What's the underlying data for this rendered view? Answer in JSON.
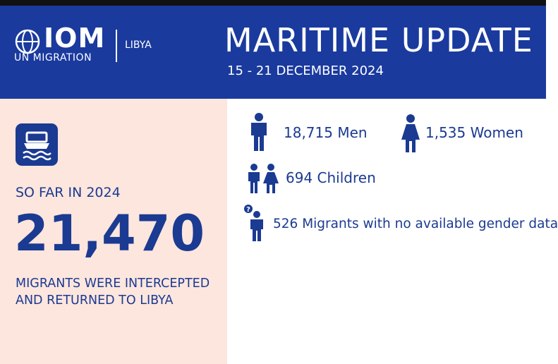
{
  "header": {
    "logo": {
      "name": "IOM",
      "tagline": "UN MIGRATION",
      "office": "LIBYA"
    },
    "title": "MARITIME UPDATE",
    "period": "15 - 21 DECEMBER 2024"
  },
  "summary": {
    "label": "SO FAR IN 2024",
    "total": "21,470",
    "description": [
      "MIGRANTS WERE INTERCEPTED",
      "AND RETURNED TO LIBYA"
    ]
  },
  "breakdown": {
    "men": "18,715 Men",
    "women": "1,535 Women",
    "children": "694 Children",
    "unknown": "526 Migrants with no available gender data"
  }
}
